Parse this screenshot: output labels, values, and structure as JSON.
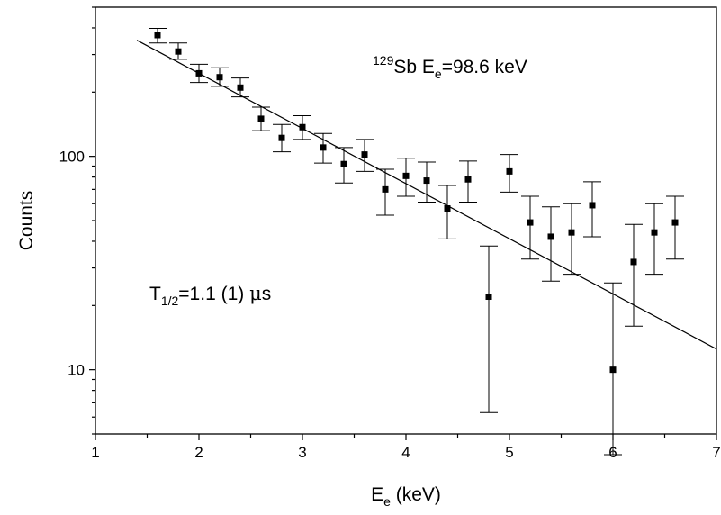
{
  "chart_data": {
    "type": "scatter",
    "title": "",
    "xlabel": {
      "main": "E",
      "sub": "e",
      "rest": " (keV)"
    },
    "ylabel": "Counts",
    "xlim": [
      1,
      7
    ],
    "ylim": [
      5,
      500
    ],
    "y_scale": "log",
    "x_ticks": [
      1,
      2,
      3,
      4,
      5,
      6,
      7
    ],
    "x_tick_labels": [
      "1",
      "2",
      "3",
      "4",
      "5",
      "6",
      "7"
    ],
    "y_major_ticks": [
      10,
      100
    ],
    "y_tick_labels": [
      "10",
      "100"
    ],
    "grid": false,
    "legend": "none",
    "annotations": {
      "isotope": {
        "mass": "129",
        "text": "Sb E",
        "sub": "e",
        "rest": "=98.6 keV"
      },
      "halflife": {
        "main": "T",
        "sub": "1/2",
        "rest": "=1.1 (1) ",
        "mu": "μ",
        "unit": "s"
      }
    },
    "series": [
      {
        "x": [
          1.6,
          1.8,
          2.0,
          2.2,
          2.4,
          2.6,
          2.8,
          3.0,
          3.2,
          3.4,
          3.6,
          3.8,
          4.0,
          4.2,
          4.4,
          4.6,
          4.8,
          5.0,
          5.2,
          5.4,
          5.6,
          5.8,
          6.0,
          6.2,
          6.4,
          6.6
        ],
        "y": [
          370,
          310,
          245,
          235,
          210,
          150,
          122,
          137,
          110,
          92,
          102,
          70,
          81,
          77,
          57,
          78,
          22,
          85,
          49,
          42,
          44,
          59,
          10,
          32,
          44,
          49
        ],
        "err_low": [
          340,
          285,
          222,
          213,
          190,
          132,
          105,
          120,
          93,
          75,
          85,
          53,
          65,
          61,
          41,
          61,
          6.3,
          68,
          33,
          26,
          28,
          42,
          4,
          16,
          28,
          33
        ],
        "err_high": [
          398,
          340,
          270,
          260,
          233,
          170,
          141,
          155,
          128,
          110,
          120,
          87,
          98,
          94,
          73,
          95,
          38,
          102,
          65,
          58,
          60,
          76,
          25.5,
          48,
          60,
          65
        ]
      }
    ],
    "fit_line": {
      "x": [
        1.4,
        7.0
      ],
      "y": [
        350,
        12.5
      ]
    }
  }
}
